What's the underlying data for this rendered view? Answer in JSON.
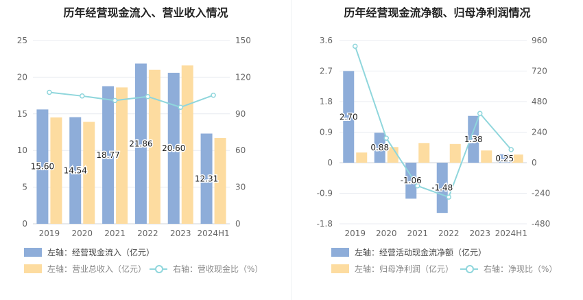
{
  "chart_data": [
    {
      "type": "bar",
      "title": "历年经营现金流入、营业收入情况",
      "categories": [
        "2019",
        "2020",
        "2021",
        "2022",
        "2023",
        "2024H1"
      ],
      "left_axis": {
        "ticks": [
          "0",
          "5",
          "10",
          "15",
          "20",
          "25"
        ],
        "ylim": [
          0,
          25
        ]
      },
      "right_axis": {
        "ticks": [
          "0",
          "30",
          "60",
          "90",
          "120",
          "150"
        ],
        "ylim": [
          0,
          150
        ]
      },
      "series": [
        {
          "name": "左轴：经营现金流入（亿元）",
          "axis": "left",
          "kind": "bar",
          "color": "#8eadd9",
          "values": [
            15.6,
            14.54,
            18.77,
            21.86,
            20.6,
            12.31
          ],
          "labels": [
            "15.60",
            "14.54",
            "18.77",
            "21.86",
            "20.60",
            "12.31"
          ]
        },
        {
          "name": "左轴：营业总收入（亿元）",
          "axis": "left",
          "kind": "bar",
          "color": "#fddca0",
          "values": [
            14.5,
            13.9,
            18.6,
            21.0,
            21.6,
            11.7
          ]
        },
        {
          "name": "右轴：营收现金比（%）",
          "axis": "right",
          "kind": "line",
          "color": "#8fd6dc",
          "values": [
            107.6,
            104.6,
            100.9,
            104.1,
            95.4,
            105.2
          ]
        }
      ],
      "grid": true,
      "legend_position": "bottom-left"
    },
    {
      "type": "bar",
      "title": "历年经营现金流净额、归母净利润情况",
      "categories": [
        "2019",
        "2020",
        "2021",
        "2022",
        "2023",
        "2024H1"
      ],
      "left_axis": {
        "ticks": [
          "-1.8",
          "-0.9",
          "0",
          "0.9",
          "1.8",
          "2.7",
          "3.6"
        ],
        "ylim": [
          -1.8,
          3.6
        ]
      },
      "right_axis": {
        "ticks": [
          "-480",
          "-240",
          "0",
          "240",
          "480",
          "720",
          "960"
        ],
        "ylim": [
          -480,
          960
        ]
      },
      "series": [
        {
          "name": "左轴：经营活动现金流净额（亿元）",
          "axis": "left",
          "kind": "bar",
          "color": "#8eadd9",
          "values": [
            2.7,
            0.88,
            -1.06,
            -1.48,
            1.38,
            0.25
          ],
          "labels": [
            "2.70",
            "0.88",
            "-1.06",
            "-1.48",
            "1.38",
            "0.25"
          ]
        },
        {
          "name": "左轴：归母净利润（亿元）",
          "axis": "left",
          "kind": "bar",
          "color": "#fddca0",
          "values": [
            0.3,
            0.46,
            0.58,
            0.55,
            0.36,
            0.24
          ]
        },
        {
          "name": "右轴：净现比（%）",
          "axis": "right",
          "kind": "line",
          "color": "#8fd6dc",
          "values": [
            915,
            193,
            -182,
            -270,
            387,
            103
          ]
        }
      ],
      "grid": true,
      "legend_position": "bottom-left"
    }
  ]
}
